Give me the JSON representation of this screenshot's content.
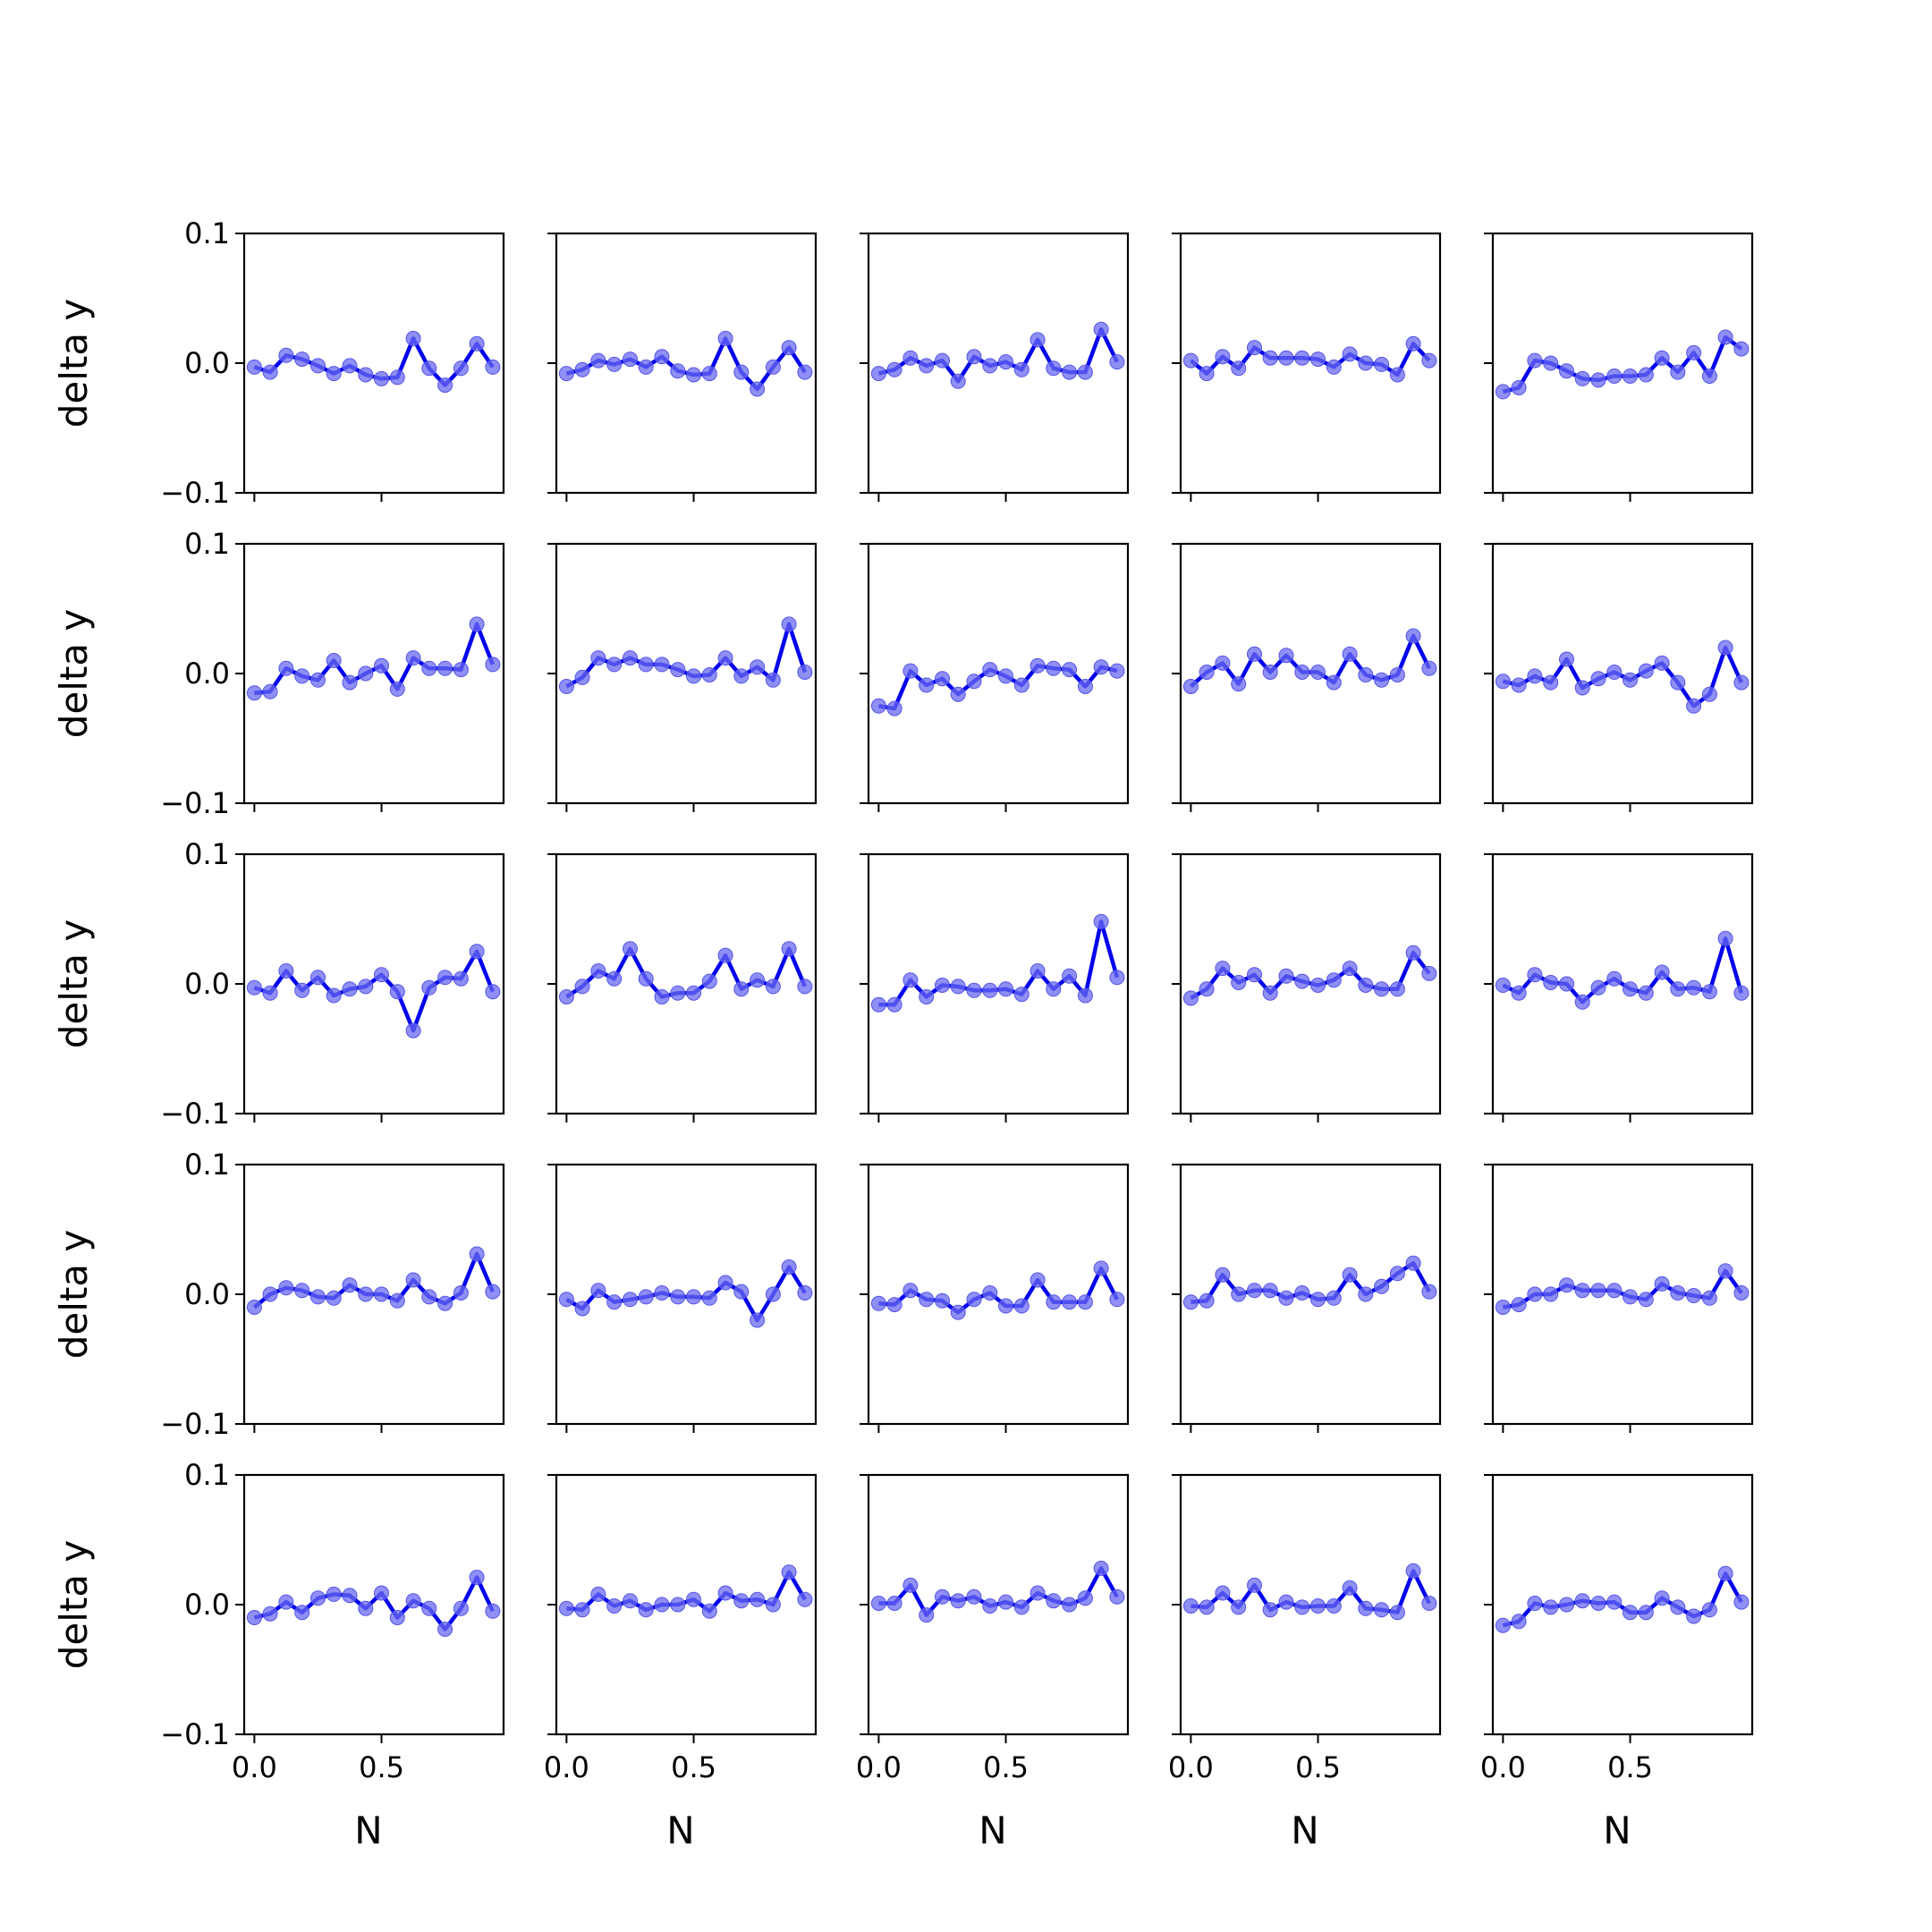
{
  "chart_data": {
    "type": "line",
    "layout": "5x5 small multiples",
    "xlabel": "N",
    "ylabel": "delta y",
    "ylim": [
      -0.1,
      0.1
    ],
    "xlim": [
      -0.04,
      0.98
    ],
    "yticks": [
      -0.1,
      0.0,
      0.1
    ],
    "ytick_labels": [
      "−0.1",
      "0.0",
      "0.1"
    ],
    "xticks": [
      0.0,
      0.5
    ],
    "xtick_labels": [
      "0.0",
      "0.5"
    ],
    "grid": false,
    "legend": "none",
    "color": "#0000ee",
    "x": [
      0.0,
      0.0625,
      0.125,
      0.1875,
      0.25,
      0.3125,
      0.375,
      0.4375,
      0.5,
      0.5625,
      0.625,
      0.6875,
      0.75,
      0.8125,
      0.875,
      0.9375
    ],
    "series": [
      [
        -0.003,
        -0.007,
        0.006,
        0.003,
        -0.002,
        -0.008,
        -0.002,
        -0.009,
        -0.012,
        -0.011,
        0.019,
        -0.004,
        -0.017,
        -0.004,
        0.015,
        -0.003
      ],
      [
        -0.008,
        -0.005,
        0.002,
        -0.001,
        0.003,
        -0.003,
        0.005,
        -0.006,
        -0.009,
        -0.008,
        0.019,
        -0.007,
        -0.02,
        -0.003,
        0.012,
        -0.007
      ],
      [
        -0.008,
        -0.005,
        0.004,
        -0.002,
        0.002,
        -0.014,
        0.005,
        -0.002,
        0.001,
        -0.005,
        0.018,
        -0.004,
        -0.007,
        -0.007,
        0.026,
        0.001
      ],
      [
        0.002,
        -0.008,
        0.005,
        -0.004,
        0.012,
        0.004,
        0.004,
        0.004,
        0.003,
        -0.003,
        0.007,
        0.0,
        -0.001,
        -0.009,
        0.015,
        0.002
      ],
      [
        -0.022,
        -0.019,
        0.002,
        0.0,
        -0.006,
        -0.012,
        -0.013,
        -0.01,
        -0.01,
        -0.009,
        0.004,
        -0.007,
        0.008,
        -0.01,
        0.02,
        0.011
      ],
      [
        -0.015,
        -0.014,
        0.004,
        -0.002,
        -0.005,
        0.01,
        -0.007,
        0.0,
        0.006,
        -0.012,
        0.012,
        0.004,
        0.004,
        0.003,
        0.038,
        0.007
      ],
      [
        -0.01,
        -0.003,
        0.012,
        0.007,
        0.012,
        0.007,
        0.007,
        0.003,
        -0.002,
        -0.001,
        0.012,
        -0.002,
        0.005,
        -0.005,
        0.038,
        0.001
      ],
      [
        -0.025,
        -0.027,
        0.002,
        -0.009,
        -0.004,
        -0.016,
        -0.006,
        0.003,
        -0.002,
        -0.009,
        0.006,
        0.004,
        0.003,
        -0.01,
        0.005,
        0.002
      ],
      [
        -0.01,
        0.001,
        0.008,
        -0.008,
        0.015,
        0.001,
        0.014,
        0.001,
        0.001,
        -0.007,
        0.015,
        -0.001,
        -0.005,
        -0.001,
        0.029,
        0.004
      ],
      [
        -0.006,
        -0.009,
        -0.002,
        -0.007,
        0.011,
        -0.011,
        -0.004,
        0.001,
        -0.005,
        0.002,
        0.008,
        -0.007,
        -0.025,
        -0.016,
        0.02,
        -0.007
      ]
    ],
    "series_rows_3_to_5": [
      [
        -0.003,
        -0.007,
        0.01,
        -0.005,
        0.005,
        -0.009,
        -0.004,
        -0.002,
        0.007,
        -0.006,
        -0.036,
        -0.003,
        0.005,
        0.004,
        0.025,
        -0.006
      ],
      [
        -0.01,
        -0.002,
        0.01,
        0.004,
        0.027,
        0.004,
        -0.01,
        -0.007,
        -0.007,
        0.002,
        0.022,
        -0.004,
        0.003,
        -0.002,
        0.027,
        -0.002
      ],
      [
        -0.016,
        -0.016,
        0.003,
        -0.01,
        -0.001,
        -0.002,
        -0.005,
        -0.005,
        -0.004,
        -0.008,
        0.01,
        -0.004,
        0.006,
        -0.009,
        0.048,
        0.005
      ],
      [
        -0.011,
        -0.004,
        0.012,
        0.001,
        0.007,
        -0.007,
        0.006,
        0.002,
        -0.001,
        0.003,
        0.012,
        -0.001,
        -0.004,
        -0.004,
        0.024,
        0.008
      ],
      [
        -0.001,
        -0.007,
        0.007,
        0.001,
        0.0,
        -0.014,
        -0.003,
        0.004,
        -0.004,
        -0.007,
        0.009,
        -0.004,
        -0.003,
        -0.006,
        0.035,
        -0.007
      ],
      [
        -0.01,
        0.0,
        0.005,
        0.003,
        -0.002,
        -0.003,
        0.007,
        0.0,
        0.0,
        -0.005,
        0.011,
        -0.002,
        -0.007,
        0.001,
        0.031,
        0.002
      ],
      [
        -0.004,
        -0.011,
        0.003,
        -0.006,
        -0.004,
        -0.002,
        0.001,
        -0.002,
        -0.002,
        -0.003,
        0.009,
        0.002,
        -0.02,
        0.0,
        0.021,
        0.001
      ],
      [
        -0.007,
        -0.008,
        0.003,
        -0.004,
        -0.005,
        -0.014,
        -0.004,
        0.001,
        -0.009,
        -0.009,
        0.011,
        -0.006,
        -0.006,
        -0.006,
        0.02,
        -0.004
      ],
      [
        -0.006,
        -0.005,
        0.015,
        0.0,
        0.003,
        0.003,
        -0.003,
        0.001,
        -0.004,
        -0.003,
        0.015,
        0.0,
        0.006,
        0.016,
        0.024,
        0.002
      ],
      [
        -0.01,
        -0.008,
        0.0,
        0.0,
        0.007,
        0.003,
        0.003,
        0.003,
        -0.002,
        -0.004,
        0.008,
        0.001,
        -0.001,
        -0.003,
        0.018,
        0.001
      ],
      [
        -0.01,
        -0.007,
        0.002,
        -0.006,
        0.005,
        0.008,
        0.007,
        -0.003,
        0.009,
        -0.01,
        0.003,
        -0.003,
        -0.019,
        -0.003,
        0.021,
        -0.005
      ],
      [
        -0.003,
        -0.004,
        0.008,
        -0.001,
        0.003,
        -0.004,
        0.0,
        0.0,
        0.004,
        -0.005,
        0.009,
        0.003,
        0.004,
        0.0,
        0.025,
        0.004
      ],
      [
        0.001,
        0.001,
        0.015,
        -0.008,
        0.006,
        0.003,
        0.006,
        -0.001,
        0.002,
        -0.002,
        0.009,
        0.003,
        0.0,
        0.005,
        0.028,
        0.006
      ],
      [
        -0.001,
        -0.002,
        0.009,
        -0.002,
        0.015,
        -0.004,
        0.002,
        -0.002,
        -0.001,
        -0.001,
        0.013,
        -0.003,
        -0.004,
        -0.006,
        0.026,
        0.001
      ],
      [
        -0.016,
        -0.013,
        0.001,
        -0.002,
        0.0,
        0.003,
        0.001,
        0.002,
        -0.006,
        -0.006,
        0.005,
        -0.002,
        -0.009,
        -0.004,
        0.024,
        0.002
      ]
    ]
  }
}
